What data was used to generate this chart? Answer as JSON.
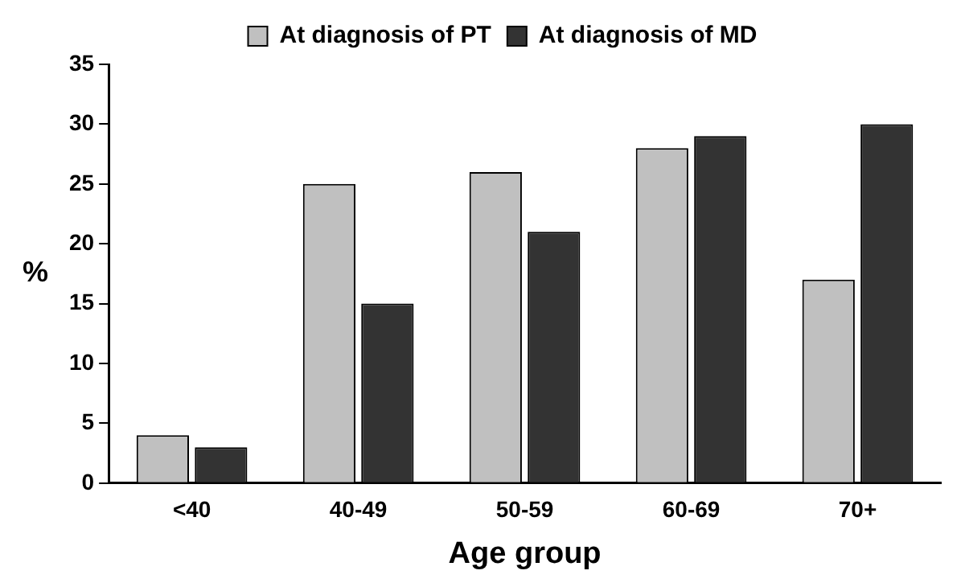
{
  "chart_data": {
    "type": "bar",
    "xlabel": "Age group",
    "ylabel": "%",
    "categories": [
      "<40",
      "40-49",
      "50-59",
      "60-69",
      "70+"
    ],
    "series": [
      {
        "name": "At diagnosis of PT",
        "color": "#c0c0c0",
        "values": [
          4,
          25,
          26,
          28,
          17
        ]
      },
      {
        "name": "At diagnosis of MD",
        "color": "#333333",
        "values": [
          3,
          15,
          21,
          29,
          30
        ]
      }
    ],
    "ylim": [
      0,
      35
    ],
    "yticks": [
      0,
      5,
      10,
      15,
      20,
      25,
      30,
      35
    ],
    "grid": false,
    "legend": "top"
  }
}
